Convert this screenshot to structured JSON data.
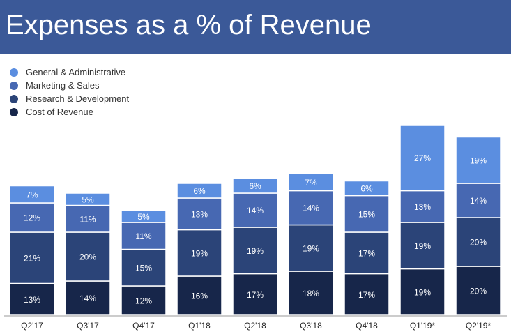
{
  "header": {
    "title": "Expenses as a % of Revenue"
  },
  "legend": [
    {
      "label": "General & Administrative",
      "color": "#5b8ee0"
    },
    {
      "label": "Marketing & Sales",
      "color": "#4768b2"
    },
    {
      "label": "Research & Development",
      "color": "#2b4478"
    },
    {
      "label": "Cost of Revenue",
      "color": "#17264a"
    }
  ],
  "chart_data": {
    "type": "bar",
    "stacked": true,
    "title": "Expenses as a % of Revenue",
    "xlabel": "",
    "ylabel": "",
    "ylim": [
      0,
      95
    ],
    "legend_position": "top-left",
    "categories": [
      "Q2'17",
      "Q3'17",
      "Q4'17",
      "Q1'18",
      "Q2'18",
      "Q3'18",
      "Q4'18",
      "Q1'19*",
      "Q2'19*"
    ],
    "series": [
      {
        "name": "Cost of Revenue",
        "color": "#17264a",
        "values": [
          13,
          14,
          12,
          16,
          17,
          18,
          17,
          19,
          20
        ]
      },
      {
        "name": "Research & Development",
        "color": "#2b4478",
        "values": [
          21,
          20,
          15,
          19,
          19,
          19,
          17,
          19,
          20
        ]
      },
      {
        "name": "Marketing & Sales",
        "color": "#4768b2",
        "values": [
          12,
          11,
          11,
          13,
          14,
          14,
          15,
          13,
          14
        ]
      },
      {
        "name": "General & Administrative",
        "color": "#5b8ee0",
        "values": [
          7,
          5,
          5,
          6,
          6,
          7,
          6,
          27,
          19
        ]
      }
    ],
    "data_labels": [
      [
        "13%",
        "14%",
        "12%",
        "16%",
        "17%",
        "18%",
        "17%",
        "19%",
        "20%"
      ],
      [
        "21%",
        "20%",
        "15%",
        "19%",
        "19%",
        "19%",
        "17%",
        "19%",
        "20%"
      ],
      [
        "12%",
        "11%",
        "11%",
        "13%",
        "14%",
        "14%",
        "15%",
        "13%",
        "14%"
      ],
      [
        "7%",
        "5%",
        "5%",
        "6%",
        "6%",
        "7%",
        "6%",
        "27%",
        "19%"
      ]
    ]
  }
}
